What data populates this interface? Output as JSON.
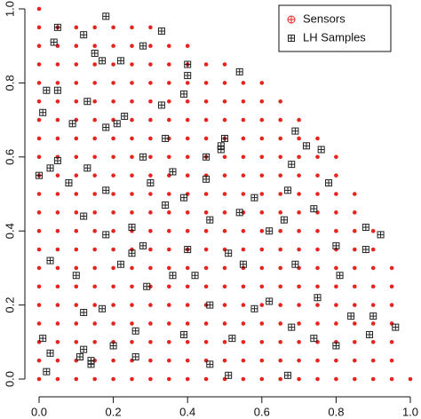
{
  "chart_data": {
    "type": "scatter",
    "xlim": [
      0,
      1
    ],
    "ylim": [
      0,
      1
    ],
    "xticks": [
      {
        "value": 0,
        "label": "0.0"
      },
      0.2,
      0.4,
      0.6,
      0.8,
      {
        "value": 1,
        "label": "1.0"
      }
    ],
    "yticks": [
      {
        "value": 0,
        "label": "0.0"
      },
      0.2,
      0.4,
      0.6,
      0.8,
      {
        "value": 1,
        "label": "1.0"
      }
    ],
    "legend": "topright",
    "series": [
      {
        "name": "Sensors",
        "color": "#e8231e",
        "marker": "dot",
        "x": [
          0,
          0.05,
          0.1,
          0.15,
          0.2,
          0.25,
          0.3,
          0.35,
          0.4,
          0.45,
          0.5,
          0.55,
          0.6,
          0.65,
          0.7,
          0.75,
          0.8,
          0.85,
          0.9,
          0.95,
          1,
          0,
          0.05,
          0.1,
          0.15,
          0.2,
          0.25,
          0.3,
          0.35,
          0.4,
          0.45,
          0.5,
          0.55,
          0.6,
          0.65,
          0.7,
          0.75,
          0.8,
          0.85,
          0.9,
          0.95,
          0,
          0.05,
          0.1,
          0.15,
          0.2,
          0.25,
          0.3,
          0.35,
          0.4,
          0.45,
          0.5,
          0.55,
          0.6,
          0.65,
          0.7,
          0.75,
          0.8,
          0.85,
          0.9,
          0.95,
          0,
          0.05,
          0.1,
          0.15,
          0.2,
          0.25,
          0.3,
          0.35,
          0.4,
          0.45,
          0.5,
          0.55,
          0.6,
          0.65,
          0.7,
          0.75,
          0.8,
          0.85,
          0.9,
          0.95,
          0,
          0.05,
          0.1,
          0.15,
          0.2,
          0.25,
          0.3,
          0.35,
          0.4,
          0.45,
          0.5,
          0.55,
          0.6,
          0.65,
          0.7,
          0.75,
          0.8,
          0.85,
          0.9,
          0.95,
          0,
          0.05,
          0.1,
          0.15,
          0.2,
          0.25,
          0.3,
          0.35,
          0.4,
          0.45,
          0.5,
          0.55,
          0.6,
          0.65,
          0.7,
          0.75,
          0.8,
          0.85,
          0.9,
          0.95,
          0,
          0.05,
          0.1,
          0.15,
          0.2,
          0.25,
          0.3,
          0.35,
          0.4,
          0.45,
          0.5,
          0.55,
          0.6,
          0.65,
          0.7,
          0.75,
          0.8,
          0.85,
          0.9,
          0.95,
          0,
          0.05,
          0.1,
          0.15,
          0.2,
          0.25,
          0.3,
          0.35,
          0.4,
          0.45,
          0.5,
          0.55,
          0.6,
          0.65,
          0.7,
          0.75,
          0.8,
          0.85,
          0.9,
          0,
          0.05,
          0.1,
          0.15,
          0.2,
          0.25,
          0.3,
          0.35,
          0.4,
          0.45,
          0.5,
          0.55,
          0.6,
          0.65,
          0.7,
          0.75,
          0.8,
          0.85,
          0.9,
          0,
          0.05,
          0.1,
          0.15,
          0.2,
          0.25,
          0.3,
          0.35,
          0.4,
          0.45,
          0.5,
          0.55,
          0.6,
          0.65,
          0.7,
          0.75,
          0.8,
          0.85,
          0,
          0.05,
          0.1,
          0.15,
          0.2,
          0.25,
          0.3,
          0.35,
          0.4,
          0.45,
          0.5,
          0.55,
          0.6,
          0.65,
          0.7,
          0.75,
          0.8,
          0.85,
          0,
          0.05,
          0.1,
          0.15,
          0.2,
          0.25,
          0.3,
          0.35,
          0.4,
          0.45,
          0.5,
          0.55,
          0.6,
          0.65,
          0.7,
          0.75,
          0.8,
          0,
          0.05,
          0.1,
          0.15,
          0.2,
          0.25,
          0.3,
          0.35,
          0.4,
          0.45,
          0.5,
          0.55,
          0.6,
          0.65,
          0.7,
          0.75,
          0.8,
          0,
          0.05,
          0.1,
          0.15,
          0.2,
          0.25,
          0.3,
          0.35,
          0.4,
          0.45,
          0.5,
          0.55,
          0.6,
          0.65,
          0.7,
          0.75,
          0,
          0.05,
          0.1,
          0.15,
          0.2,
          0.25,
          0.3,
          0.35,
          0.4,
          0.45,
          0.5,
          0.55,
          0.6,
          0.65,
          0.7,
          0,
          0.05,
          0.1,
          0.15,
          0.2,
          0.25,
          0.3,
          0.35,
          0.4,
          0.45,
          0.5,
          0.55,
          0.6,
          0.65,
          0,
          0.05,
          0.1,
          0.15,
          0.2,
          0.25,
          0.3,
          0.35,
          0.4,
          0.45,
          0.5,
          0.55,
          0.6,
          0,
          0.05,
          0.1,
          0.15,
          0.2,
          0.25,
          0.3,
          0.35,
          0.4,
          0.45,
          0.5,
          0,
          0.05,
          0.1,
          0.15,
          0.2,
          0.25,
          0.3,
          0.35,
          0.4,
          0,
          0.05,
          0.1,
          0.15,
          0.2,
          0.25,
          0.3,
          0
        ],
        "y": [
          0,
          0,
          0,
          0,
          0,
          0,
          0,
          0,
          0,
          0,
          0,
          0,
          0,
          0,
          0,
          0,
          0,
          0,
          0,
          0,
          0,
          0.05,
          0.05,
          0.05,
          0.05,
          0.05,
          0.05,
          0.05,
          0.05,
          0.05,
          0.05,
          0.05,
          0.05,
          0.05,
          0.05,
          0.05,
          0.05,
          0.05,
          0.05,
          0.05,
          0.05,
          0.1,
          0.1,
          0.1,
          0.1,
          0.1,
          0.1,
          0.1,
          0.1,
          0.1,
          0.1,
          0.1,
          0.1,
          0.1,
          0.1,
          0.1,
          0.1,
          0.1,
          0.1,
          0.1,
          0.1,
          0.15,
          0.15,
          0.15,
          0.15,
          0.15,
          0.15,
          0.15,
          0.15,
          0.15,
          0.15,
          0.15,
          0.15,
          0.15,
          0.15,
          0.15,
          0.15,
          0.15,
          0.15,
          0.15,
          0.15,
          0.2,
          0.2,
          0.2,
          0.2,
          0.2,
          0.2,
          0.2,
          0.2,
          0.2,
          0.2,
          0.2,
          0.2,
          0.2,
          0.2,
          0.2,
          0.2,
          0.2,
          0.2,
          0.2,
          0.2,
          0.25,
          0.25,
          0.25,
          0.25,
          0.25,
          0.25,
          0.25,
          0.25,
          0.25,
          0.25,
          0.25,
          0.25,
          0.25,
          0.25,
          0.25,
          0.25,
          0.25,
          0.25,
          0.25,
          0.25,
          0.3,
          0.3,
          0.3,
          0.3,
          0.3,
          0.3,
          0.3,
          0.3,
          0.3,
          0.3,
          0.3,
          0.3,
          0.3,
          0.3,
          0.3,
          0.3,
          0.3,
          0.3,
          0.3,
          0.3,
          0.35,
          0.35,
          0.35,
          0.35,
          0.35,
          0.35,
          0.35,
          0.35,
          0.35,
          0.35,
          0.35,
          0.35,
          0.35,
          0.35,
          0.35,
          0.35,
          0.35,
          0.35,
          0.35,
          0.4,
          0.4,
          0.4,
          0.4,
          0.4,
          0.4,
          0.4,
          0.4,
          0.4,
          0.4,
          0.4,
          0.4,
          0.4,
          0.4,
          0.4,
          0.4,
          0.4,
          0.4,
          0.4,
          0.45,
          0.45,
          0.45,
          0.45,
          0.45,
          0.45,
          0.45,
          0.45,
          0.45,
          0.45,
          0.45,
          0.45,
          0.45,
          0.45,
          0.45,
          0.45,
          0.45,
          0.45,
          0.5,
          0.5,
          0.5,
          0.5,
          0.5,
          0.5,
          0.5,
          0.5,
          0.5,
          0.5,
          0.5,
          0.5,
          0.5,
          0.5,
          0.5,
          0.5,
          0.5,
          0.5,
          0.55,
          0.55,
          0.55,
          0.55,
          0.55,
          0.55,
          0.55,
          0.55,
          0.55,
          0.55,
          0.55,
          0.55,
          0.55,
          0.55,
          0.55,
          0.55,
          0.55,
          0.6,
          0.6,
          0.6,
          0.6,
          0.6,
          0.6,
          0.6,
          0.6,
          0.6,
          0.6,
          0.6,
          0.6,
          0.6,
          0.6,
          0.6,
          0.6,
          0.6,
          0.65,
          0.65,
          0.65,
          0.65,
          0.65,
          0.65,
          0.65,
          0.65,
          0.65,
          0.65,
          0.65,
          0.65,
          0.65,
          0.65,
          0.65,
          0.65,
          0.7,
          0.7,
          0.7,
          0.7,
          0.7,
          0.7,
          0.7,
          0.7,
          0.7,
          0.7,
          0.7,
          0.7,
          0.7,
          0.7,
          0.7,
          0.75,
          0.75,
          0.75,
          0.75,
          0.75,
          0.75,
          0.75,
          0.75,
          0.75,
          0.75,
          0.75,
          0.75,
          0.75,
          0.75,
          0.8,
          0.8,
          0.8,
          0.8,
          0.8,
          0.8,
          0.8,
          0.8,
          0.8,
          0.8,
          0.8,
          0.8,
          0.8,
          0.85,
          0.85,
          0.85,
          0.85,
          0.85,
          0.85,
          0.85,
          0.85,
          0.85,
          0.85,
          0.85,
          0.9,
          0.9,
          0.9,
          0.9,
          0.9,
          0.9,
          0.9,
          0.9,
          0.9,
          0.95,
          0.95,
          0.95,
          0.95,
          0.95,
          0.95,
          0.95,
          1
        ]
      },
      {
        "name": "LH Samples",
        "color": "#222222",
        "marker": "square-plus",
        "x": [
          0.18,
          0.05,
          0.33,
          0.12,
          0.28,
          0.04,
          0.15,
          0.17,
          0.22,
          0.4,
          0.54,
          0.4,
          0.05,
          0.02,
          0.39,
          0.13,
          0.33,
          0.01,
          0.23,
          0.09,
          0.21,
          0.18,
          0.69,
          0.34,
          0.5,
          0.72,
          0.49,
          0.49,
          0.45,
          0.76,
          0.28,
          0.05,
          0.03,
          0.68,
          0.13,
          0,
          0.36,
          0.45,
          0.08,
          0.3,
          0.78,
          0.67,
          0.18,
          0.58,
          0.39,
          0.34,
          0.74,
          0.54,
          0.12,
          0.46,
          0.66,
          0.25,
          0.88,
          0.62,
          0.18,
          0.92,
          0.8,
          0.28,
          0.4,
          0.51,
          0.88,
          0.25,
          0.22,
          0.55,
          0.03,
          0.69,
          0.36,
          0.1,
          0.42,
          0.81,
          0.29,
          0.75,
          0.62,
          0.46,
          0.17,
          0.58,
          0.84,
          0.12,
          0.9,
          0.68,
          0.26,
          0.96,
          0.39,
          0.01,
          0.52,
          0.74,
          0.89,
          0.2,
          0.8,
          0.12,
          0.03,
          0.26,
          0.11,
          0.14,
          0.46,
          0.14,
          0.02,
          0.67,
          0.51
        ],
        "y": [
          0.98,
          0.95,
          0.94,
          0.93,
          0.9,
          0.91,
          0.88,
          0.86,
          0.86,
          0.85,
          0.83,
          0.82,
          0.78,
          0.78,
          0.77,
          0.75,
          0.74,
          0.72,
          0.71,
          0.69,
          0.69,
          0.68,
          0.67,
          0.65,
          0.65,
          0.63,
          0.63,
          0.62,
          0.6,
          0.62,
          0.6,
          0.59,
          0.57,
          0.58,
          0.57,
          0.55,
          0.56,
          0.54,
          0.53,
          0.53,
          0.53,
          0.51,
          0.51,
          0.49,
          0.49,
          0.47,
          0.46,
          0.45,
          0.44,
          0.43,
          0.43,
          0.41,
          0.41,
          0.4,
          0.39,
          0.39,
          0.36,
          0.36,
          0.35,
          0.34,
          0.35,
          0.34,
          0.31,
          0.31,
          0.32,
          0.31,
          0.28,
          0.28,
          0.28,
          0.28,
          0.25,
          0.22,
          0.21,
          0.2,
          0.19,
          0.19,
          0.17,
          0.18,
          0.17,
          0.14,
          0.13,
          0.14,
          0.12,
          0.11,
          0.11,
          0.11,
          0.12,
          0.09,
          0.09,
          0.08,
          0.07,
          0.06,
          0.06,
          0.05,
          0.04,
          0.04,
          0.02,
          0.01,
          0.01
        ]
      }
    ]
  }
}
